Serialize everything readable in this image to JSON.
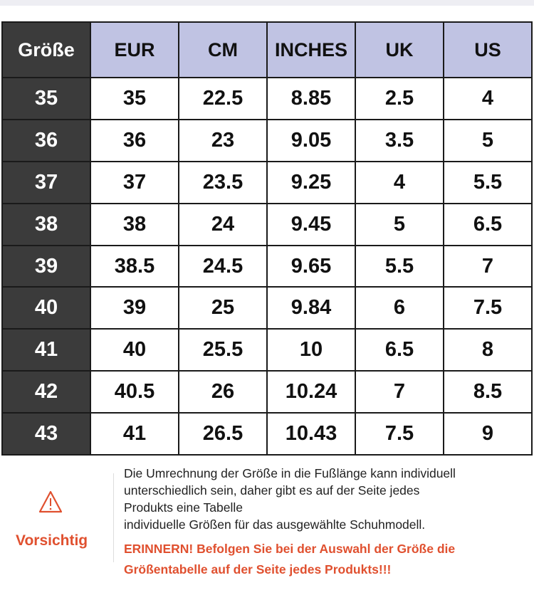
{
  "table": {
    "headers": [
      "Größe",
      "EUR",
      "CM",
      "INCHES",
      "UK",
      "US"
    ],
    "rows": [
      [
        "35",
        "35",
        "22.5",
        "8.85",
        "2.5",
        "4"
      ],
      [
        "36",
        "36",
        "23",
        "9.05",
        "3.5",
        "5"
      ],
      [
        "37",
        "37",
        "23.5",
        "9.25",
        "4",
        "5.5"
      ],
      [
        "38",
        "38",
        "24",
        "9.45",
        "5",
        "6.5"
      ],
      [
        "39",
        "38.5",
        "24.5",
        "9.65",
        "5.5",
        "7"
      ],
      [
        "40",
        "39",
        "25",
        "9.84",
        "6",
        "7.5"
      ],
      [
        "41",
        "40",
        "25.5",
        "10",
        "6.5",
        "8"
      ],
      [
        "42",
        "40.5",
        "26",
        "10.24",
        "7",
        "8.5"
      ],
      [
        "43",
        "41",
        "26.5",
        "10.43",
        "7.5",
        "9"
      ]
    ]
  },
  "note": {
    "icon": "warning-triangle-icon",
    "caution_label": "Vorsichtig",
    "lines": [
      "Die Umrechnung der Größe in die Fußlänge kann individuell",
      "unterschiedlich sein, daher gibt es auf der Seite jedes",
      "Produkts eine Tabelle",
      "individuelle Größen für das ausgewählte Schuhmodell."
    ],
    "warning_lines": [
      "ERINNERN! Befolgen Sie bei der Auswahl der Größe die",
      "Größentabelle auf der Seite jedes Produkts!!!"
    ],
    "accent_color": "#e0502f"
  },
  "colors": {
    "header_bg": "#c0c3e3",
    "first_col_bg": "#3b3b3b"
  }
}
